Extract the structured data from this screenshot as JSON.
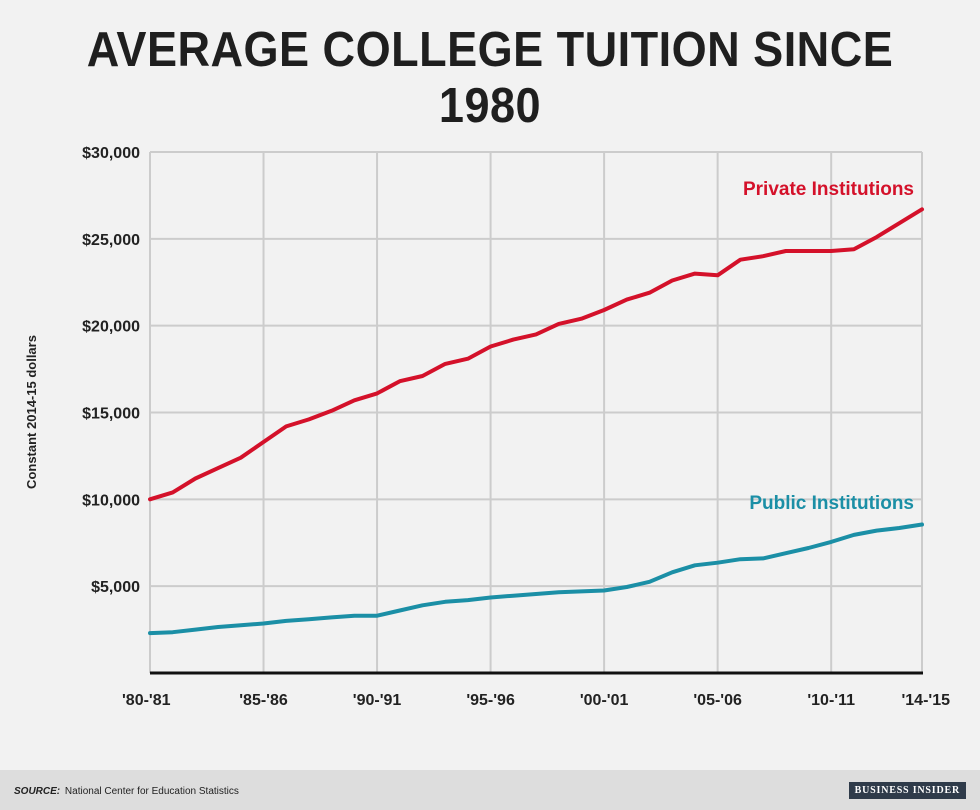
{
  "title": "AVERAGE COLLEGE TUITION SINCE 1980",
  "source": {
    "label": "SOURCE:",
    "text": "National Center for Education Statistics"
  },
  "brand": "BUSINESS INSIDER",
  "colors": {
    "private": "#d4112a",
    "public": "#1b8fa6",
    "grid": "#cccccc",
    "axis": "#111111",
    "text": "#222222"
  },
  "chart_data": {
    "type": "line",
    "title": "AVERAGE COLLEGE TUITION SINCE 1980",
    "xlabel": "",
    "ylabel": "Constant 2014-15 dollars",
    "ylim": [
      0,
      30000
    ],
    "yticks": [
      5000,
      10000,
      15000,
      20000,
      25000,
      30000
    ],
    "ytick_labels": [
      "$5,000",
      "$10,000",
      "$15,000",
      "$20,000",
      "$25,000",
      "$30,000"
    ],
    "x": [
      "'80-'81",
      "'81-'82",
      "'82-'83",
      "'83-'84",
      "'84-'85",
      "'85-'86",
      "'86-'87",
      "'87-'88",
      "'88-'89",
      "'89-'90",
      "'90-'91",
      "'91-'92",
      "'92-'93",
      "'93-'94",
      "'94-'95",
      "'95-'96",
      "'96-'97",
      "'97-'98",
      "'98-'99",
      "'99-'00",
      "'00-'01",
      "'01-'02",
      "'02-'03",
      "'03-'04",
      "'04-'05",
      "'05-'06",
      "'06-'07",
      "'07-'08",
      "'08-'09",
      "'09-'10",
      "'10-'11",
      "'11-'12",
      "'12-'13",
      "'13-'14",
      "'14-'15"
    ],
    "xtick_labels": [
      "'80-'81",
      "'85-'86",
      "'90-'91",
      "'95-'96",
      "'00-'01",
      "'05-'06",
      "'10-'11",
      "'14-'15"
    ],
    "xtick_positions": [
      0,
      5,
      10,
      15,
      20,
      25,
      30,
      34
    ],
    "grid": true,
    "series": [
      {
        "name": "Private Institutions",
        "color": "#d4112a",
        "values": [
          10000,
          10400,
          11200,
          11800,
          12400,
          13300,
          14200,
          14600,
          15100,
          15700,
          16100,
          16800,
          17100,
          17800,
          18100,
          18800,
          19200,
          19500,
          20100,
          20400,
          20900,
          21500,
          21900,
          22600,
          23000,
          22900,
          23800,
          24000,
          24300,
          24300,
          24300,
          24400,
          25100,
          25900,
          26700
        ]
      },
      {
        "name": "Public Institutions",
        "color": "#1b8fa6",
        "values": [
          2300,
          2350,
          2500,
          2650,
          2750,
          2850,
          3000,
          3100,
          3200,
          3300,
          3300,
          3600,
          3900,
          4100,
          4200,
          4350,
          4450,
          4550,
          4650,
          4700,
          4750,
          4950,
          5250,
          5800,
          6200,
          6350,
          6550,
          6600,
          6900,
          7200,
          7550,
          7950,
          8200,
          8350,
          8550
        ]
      }
    ]
  }
}
